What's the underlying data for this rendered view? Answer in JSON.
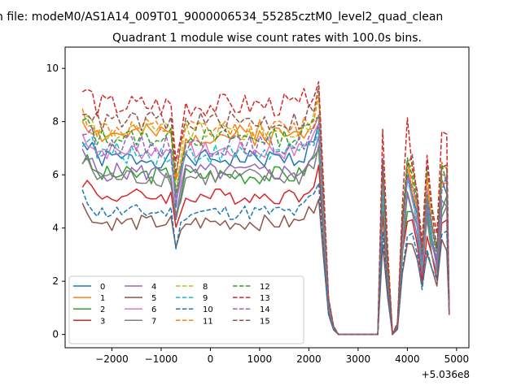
{
  "chart_data": {
    "type": "line",
    "suptitle": "n file: modeM0/AS1A14_009T01_9000006534_55285cztM0_level2_quad_clean",
    "title": "Quadrant 1 module wise count rates with 100.0s bins.",
    "xlabel": "",
    "ylabel": "",
    "x_offset_label": "+5.036e8",
    "xlim": [
      -2950,
      5250
    ],
    "ylim": [
      -0.5,
      10.8
    ],
    "xticks": [
      -2000,
      -1000,
      0,
      1000,
      2000,
      3000,
      4000,
      5000
    ],
    "xtick_labels": [
      "−2000",
      "−1000",
      "0",
      "1000",
      "2000",
      "3000",
      "4000",
      "5000"
    ],
    "yticks": [
      0,
      2,
      4,
      6,
      8,
      10
    ],
    "ytick_labels": [
      "0",
      "2",
      "4",
      "6",
      "8",
      "10"
    ],
    "legend_position": "lower-left",
    "x_segments": [
      {
        "start": -2600,
        "end": 2200,
        "step": 100
      },
      {
        "values": [
          2300,
          2400,
          2500,
          2600,
          2700,
          2800,
          2900,
          3000,
          3100,
          3200,
          3300,
          3400,
          3500,
          3600,
          3700,
          3800,
          3900,
          4000,
          4100,
          4200,
          4300,
          4400,
          4500,
          4600,
          4700,
          4800,
          4850
        ]
      }
    ],
    "series": [
      {
        "name": "0",
        "color": "#1f77b4",
        "style": "solid",
        "level": 6.6,
        "amp": 0.35,
        "dip": 3.0,
        "seed": 1
      },
      {
        "name": "1",
        "color": "#ff7f0e",
        "style": "solid",
        "level": 7.5,
        "amp": 0.4,
        "dip": 3.5,
        "seed": 2
      },
      {
        "name": "2",
        "color": "#2ca02c",
        "style": "solid",
        "level": 6.0,
        "amp": 0.35,
        "dip": 2.8,
        "seed": 3
      },
      {
        "name": "3",
        "color": "#d62728",
        "style": "solid",
        "level": 5.2,
        "amp": 0.3,
        "dip": 2.4,
        "seed": 4
      },
      {
        "name": "4",
        "color": "#9467bd",
        "style": "solid",
        "level": 6.1,
        "amp": 0.35,
        "dip": 2.9,
        "seed": 5
      },
      {
        "name": "5",
        "color": "#8c564b",
        "style": "solid",
        "level": 4.2,
        "amp": 0.3,
        "dip": 1.8,
        "seed": 6
      },
      {
        "name": "6",
        "color": "#e377c2",
        "style": "solid",
        "level": 6.9,
        "amp": 0.35,
        "dip": 3.2,
        "seed": 7
      },
      {
        "name": "7",
        "color": "#7f7f7f",
        "style": "solid",
        "level": 5.9,
        "amp": 0.35,
        "dip": 2.8,
        "seed": 8
      },
      {
        "name": "8",
        "color": "#bcbd22",
        "style": "dashed",
        "level": 7.6,
        "amp": 0.4,
        "dip": 3.6,
        "seed": 9
      },
      {
        "name": "9",
        "color": "#17becf",
        "style": "dashed",
        "level": 6.8,
        "amp": 0.4,
        "dip": 3.2,
        "seed": 10
      },
      {
        "name": "10",
        "color": "#1f77b4",
        "style": "dashed",
        "level": 4.6,
        "amp": 0.3,
        "dip": 2.0,
        "seed": 11
      },
      {
        "name": "11",
        "color": "#ff7f0e",
        "style": "dashed",
        "level": 7.7,
        "amp": 0.4,
        "dip": 3.6,
        "seed": 12
      },
      {
        "name": "12",
        "color": "#2ca02c",
        "style": "dashed",
        "level": 7.4,
        "amp": 0.35,
        "dip": 3.5,
        "seed": 13
      },
      {
        "name": "13",
        "color": "#d62728",
        "style": "dashed",
        "level": 8.6,
        "amp": 0.45,
        "dip": 4.2,
        "seed": 14
      },
      {
        "name": "14",
        "color": "#9467bd",
        "style": "dashed",
        "level": 7.1,
        "amp": 0.4,
        "dip": 3.4,
        "seed": 15
      },
      {
        "name": "15",
        "color": "#8c564b",
        "style": "dashed",
        "level": 8.0,
        "amp": 0.4,
        "dip": 3.8,
        "seed": 16
      }
    ],
    "late_segment_profile": [
      0.55,
      0.17,
      0.04,
      0.0,
      0.0,
      0.0,
      0.0,
      0.0,
      0.0,
      0.0,
      0.0,
      0.0,
      0.85,
      0.35,
      0.0,
      0.05,
      0.55,
      0.82,
      0.78,
      0.65,
      0.4,
      0.75,
      0.55,
      0.42,
      0.82,
      0.82,
      0.08
    ],
    "late_segment_peaks": [
      0.62,
      0.55,
      0.52
    ]
  }
}
